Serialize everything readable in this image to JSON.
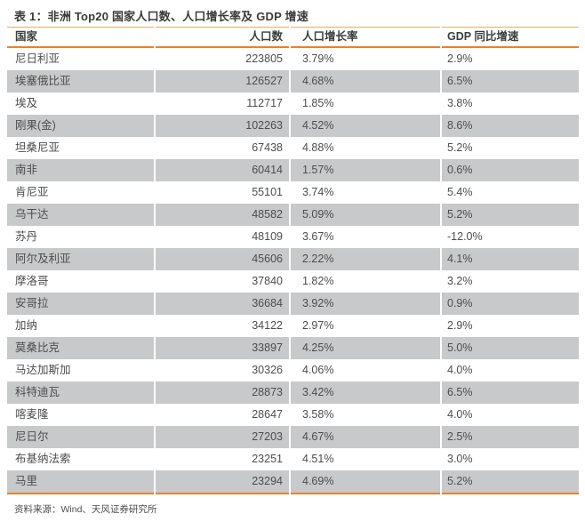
{
  "title": "表 1：非洲 Top20 国家人口数、人口增长率及 GDP 增速",
  "source_note": "资料来源：Wind、天风证券研究所",
  "colors": {
    "accent_orange": "#E8812A",
    "accent_orange_light": "#F2A768",
    "row_shade_gray": "#C8C9CA",
    "header_text": "#3C3C3C",
    "body_text": "#4D4D4D"
  },
  "table": {
    "headers": [
      "国家",
      "人口数",
      "人口增长率",
      "GDP 同比增速"
    ],
    "rows": [
      [
        "尼日利亚",
        "223805",
        "3.79%",
        "2.9%"
      ],
      [
        "埃塞俄比亚",
        "126527",
        "4.68%",
        "6.5%"
      ],
      [
        "埃及",
        "112717",
        "1.85%",
        "3.8%"
      ],
      [
        "刚果(金)",
        "102263",
        "4.52%",
        "8.6%"
      ],
      [
        "坦桑尼亚",
        "67438",
        "4.88%",
        "5.2%"
      ],
      [
        "南非",
        "60414",
        "1.57%",
        "0.6%"
      ],
      [
        "肯尼亚",
        "55101",
        "3.74%",
        "5.4%"
      ],
      [
        "乌干达",
        "48582",
        "5.09%",
        "5.2%"
      ],
      [
        "苏丹",
        "48109",
        "3.67%",
        "-12.0%"
      ],
      [
        "阿尔及利亚",
        "45606",
        "2.22%",
        "4.1%"
      ],
      [
        "摩洛哥",
        "37840",
        "1.82%",
        "3.2%"
      ],
      [
        "安哥拉",
        "36684",
        "3.92%",
        "0.9%"
      ],
      [
        "加纳",
        "34122",
        "2.97%",
        "2.9%"
      ],
      [
        "莫桑比克",
        "33897",
        "4.25%",
        "5.0%"
      ],
      [
        "马达加斯加",
        "30326",
        "4.06%",
        "4.0%"
      ],
      [
        "科特迪瓦",
        "28873",
        "3.42%",
        "6.5%"
      ],
      [
        "喀麦隆",
        "28647",
        "3.58%",
        "4.0%"
      ],
      [
        "尼日尔",
        "27203",
        "4.67%",
        "2.5%"
      ],
      [
        "布基纳法索",
        "23251",
        "4.51%",
        "3.0%"
      ],
      [
        "马里",
        "23294",
        "4.69%",
        "5.2%"
      ]
    ]
  }
}
